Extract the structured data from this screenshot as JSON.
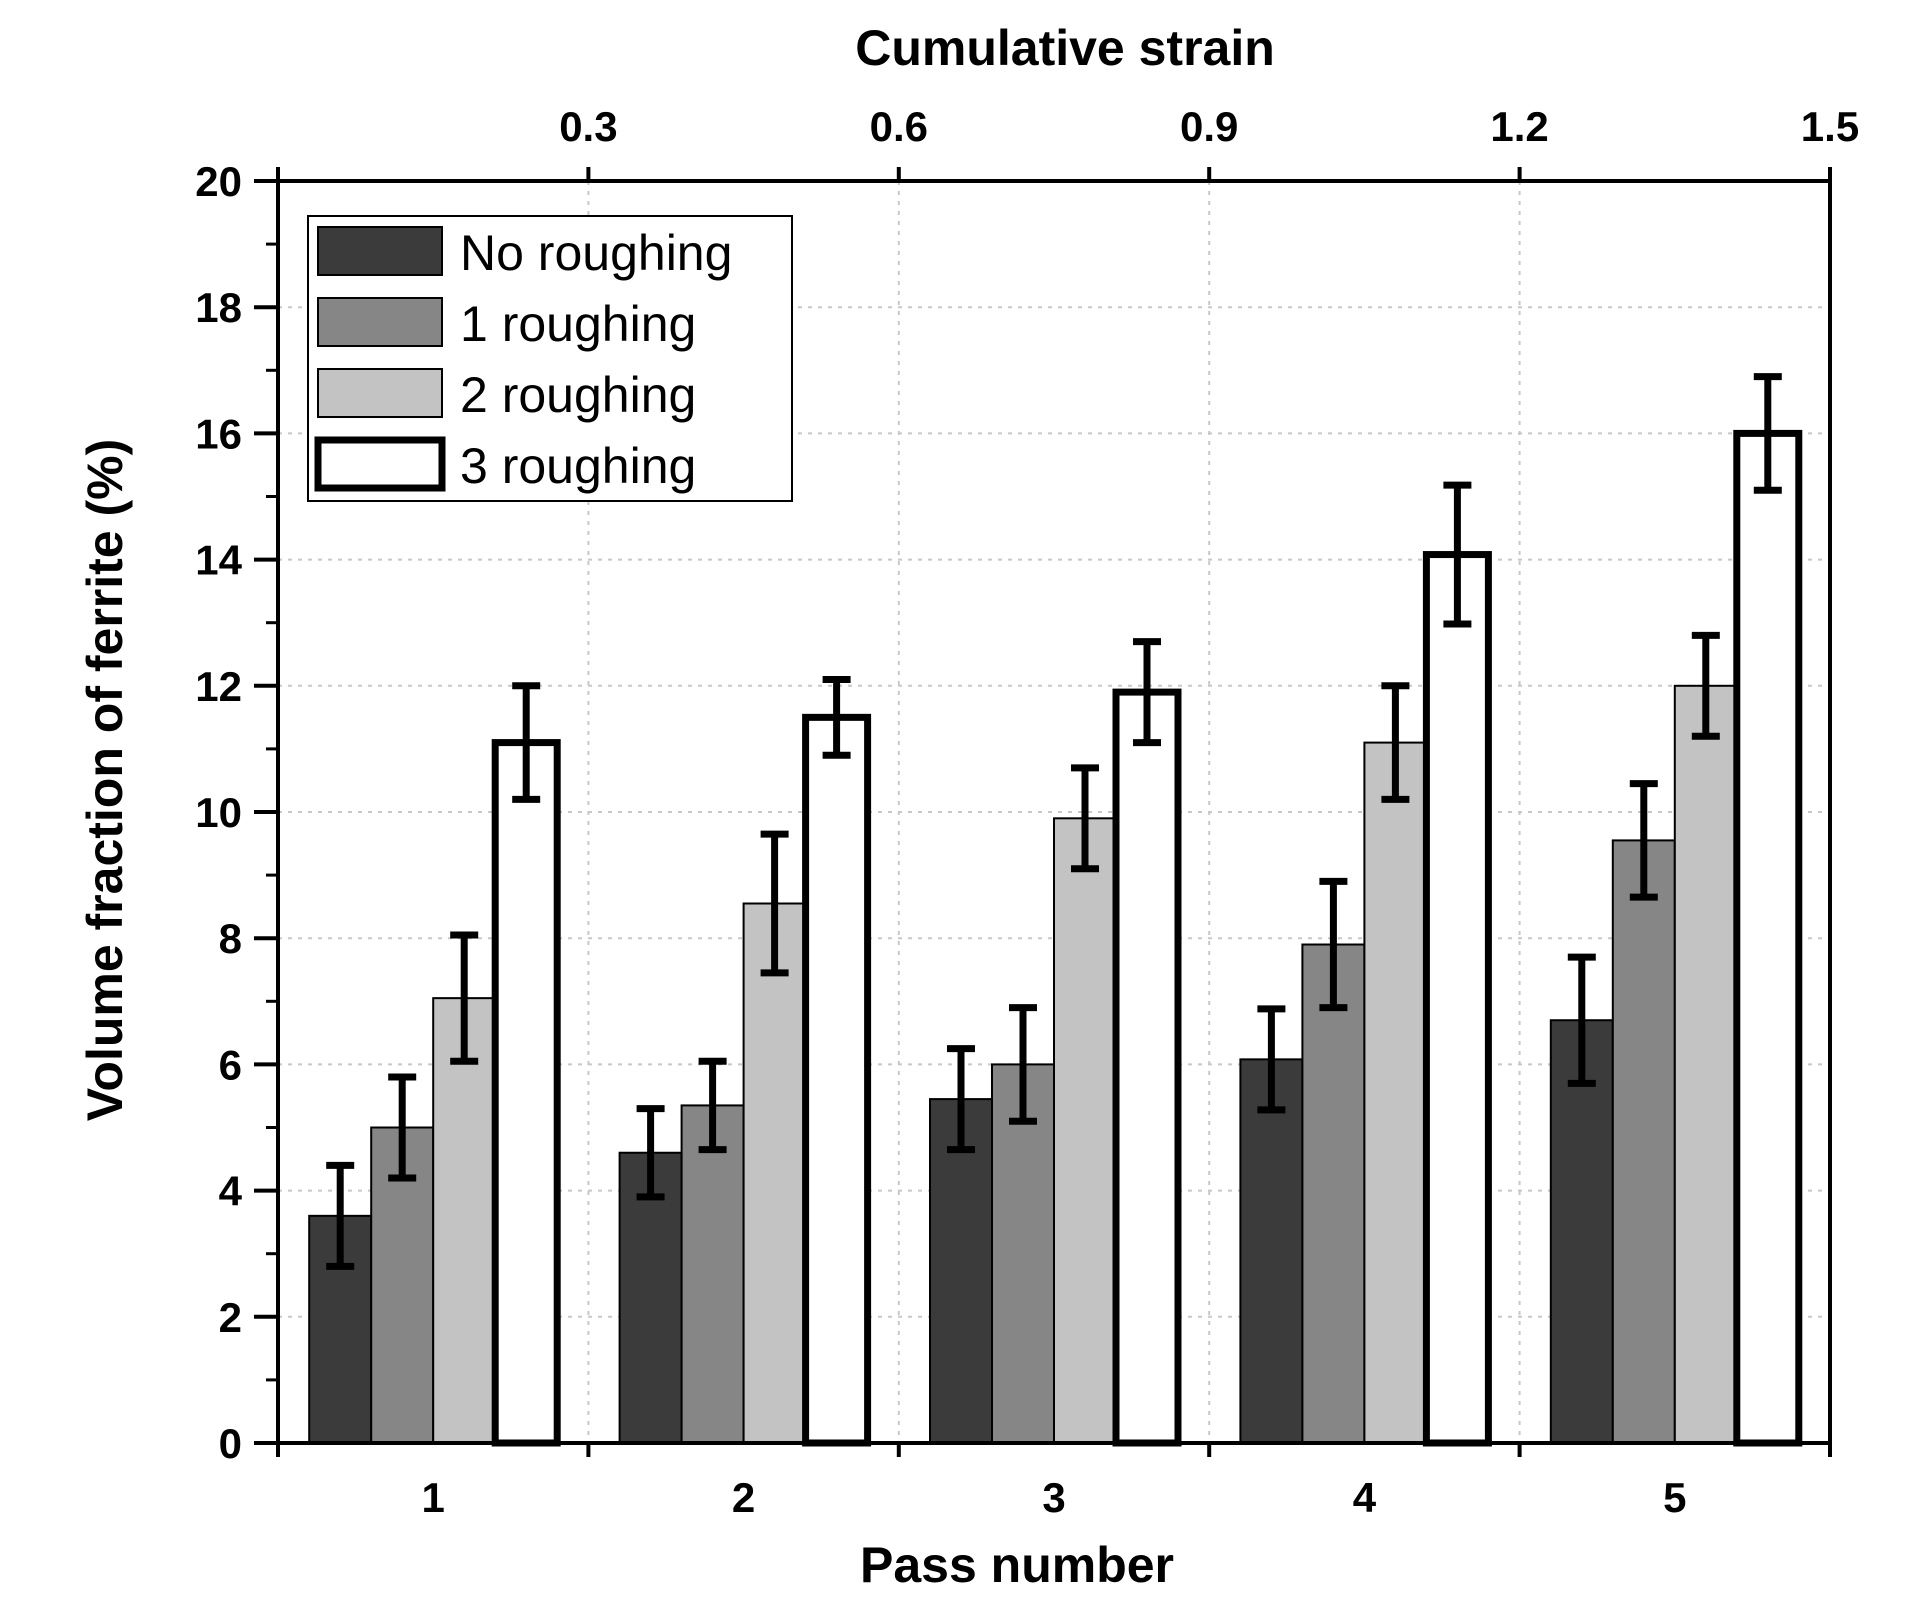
{
  "chart_data": {
    "type": "bar",
    "title": "",
    "xlabel": "Pass number",
    "ylabel": "Volume fraction of ferrite (%)",
    "top_axis_label": "Cumulative strain",
    "categories": [
      "1",
      "2",
      "3",
      "4",
      "5"
    ],
    "ylim": [
      0,
      20
    ],
    "yticks": [
      "0",
      "2",
      "4",
      "6",
      "8",
      "10",
      "12",
      "14",
      "16",
      "18",
      "20"
    ],
    "top_axis_ticks": [
      "0.3",
      "0.6",
      "0.9",
      "1.2",
      "1.5"
    ],
    "grid": true,
    "legend_position": "top-left",
    "series": [
      {
        "name": "No roughing",
        "color": "#3b3b3b",
        "values": [
          3.6,
          4.6,
          5.45,
          6.08,
          6.7
        ],
        "errors": [
          0.8,
          0.7,
          0.8,
          0.8,
          1.0
        ]
      },
      {
        "name": "1 roughing",
        "color": "#868686",
        "values": [
          5.0,
          5.35,
          6.0,
          7.9,
          9.55
        ],
        "errors": [
          0.8,
          0.7,
          0.9,
          1.0,
          0.9
        ]
      },
      {
        "name": "2 roughing",
        "color": "#c3c3c3",
        "values": [
          7.05,
          8.55,
          9.9,
          11.1,
          12.0
        ],
        "errors": [
          1.0,
          1.1,
          0.8,
          0.9,
          0.8
        ]
      },
      {
        "name": "3 roughing",
        "color": "#ffffff",
        "values": [
          11.1,
          11.5,
          11.9,
          14.08,
          16.0
        ],
        "errors": [
          0.9,
          0.6,
          0.8,
          1.1,
          0.9
        ]
      }
    ]
  }
}
